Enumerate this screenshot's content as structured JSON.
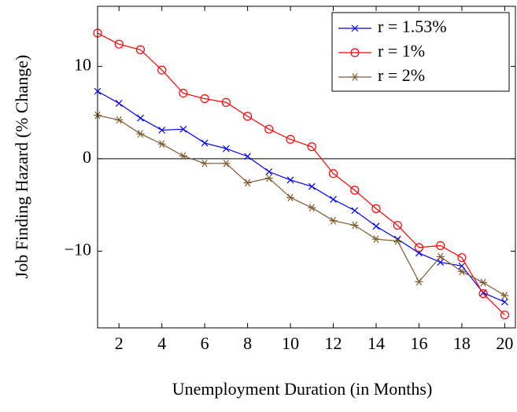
{
  "chart_data": {
    "type": "line",
    "xlabel": "Unemployment Duration (in Months)",
    "ylabel": "Job Finding Hazard (% Change)",
    "x": [
      1,
      2,
      3,
      4,
      5,
      6,
      7,
      8,
      9,
      10,
      11,
      12,
      13,
      14,
      15,
      16,
      17,
      18,
      19,
      20
    ],
    "series": [
      {
        "name": "r = 1.53%",
        "color": "#0000ff",
        "marker": "x",
        "values": [
          7.3,
          6.0,
          4.4,
          3.1,
          3.2,
          1.7,
          1.1,
          0.25,
          -1.4,
          -2.3,
          -3.0,
          -4.4,
          -5.6,
          -7.3,
          -8.7,
          -10.2,
          -11.2,
          -11.6,
          -14.5,
          -15.5
        ]
      },
      {
        "name": "r = 1%",
        "color": "#ff0000",
        "marker": "o",
        "values": [
          13.6,
          12.4,
          11.8,
          9.6,
          7.1,
          6.5,
          6.1,
          4.6,
          3.2,
          2.1,
          1.3,
          -1.6,
          -3.4,
          -5.4,
          -7.2,
          -9.6,
          -9.4,
          -10.7,
          -14.6,
          -16.9
        ]
      },
      {
        "name": "r = 2%",
        "color": "#7f5a2e",
        "marker": "*",
        "values": [
          4.7,
          4.2,
          2.7,
          1.6,
          0.3,
          -0.5,
          -0.5,
          -2.6,
          -2.1,
          -4.2,
          -5.3,
          -6.7,
          -7.2,
          -8.7,
          -8.9,
          -13.3,
          -10.6,
          -12.2,
          -13.4,
          -14.8
        ]
      }
    ],
    "xlim": [
      1,
      20.5
    ],
    "ylim": [
      -18.3,
      16.5
    ],
    "xticks": [
      2,
      4,
      6,
      8,
      10,
      12,
      14,
      16,
      18,
      20
    ],
    "yticks": [
      {
        "value": -10,
        "label": "−10"
      },
      0,
      10
    ],
    "reference_line": 0,
    "legend": "upper right"
  }
}
